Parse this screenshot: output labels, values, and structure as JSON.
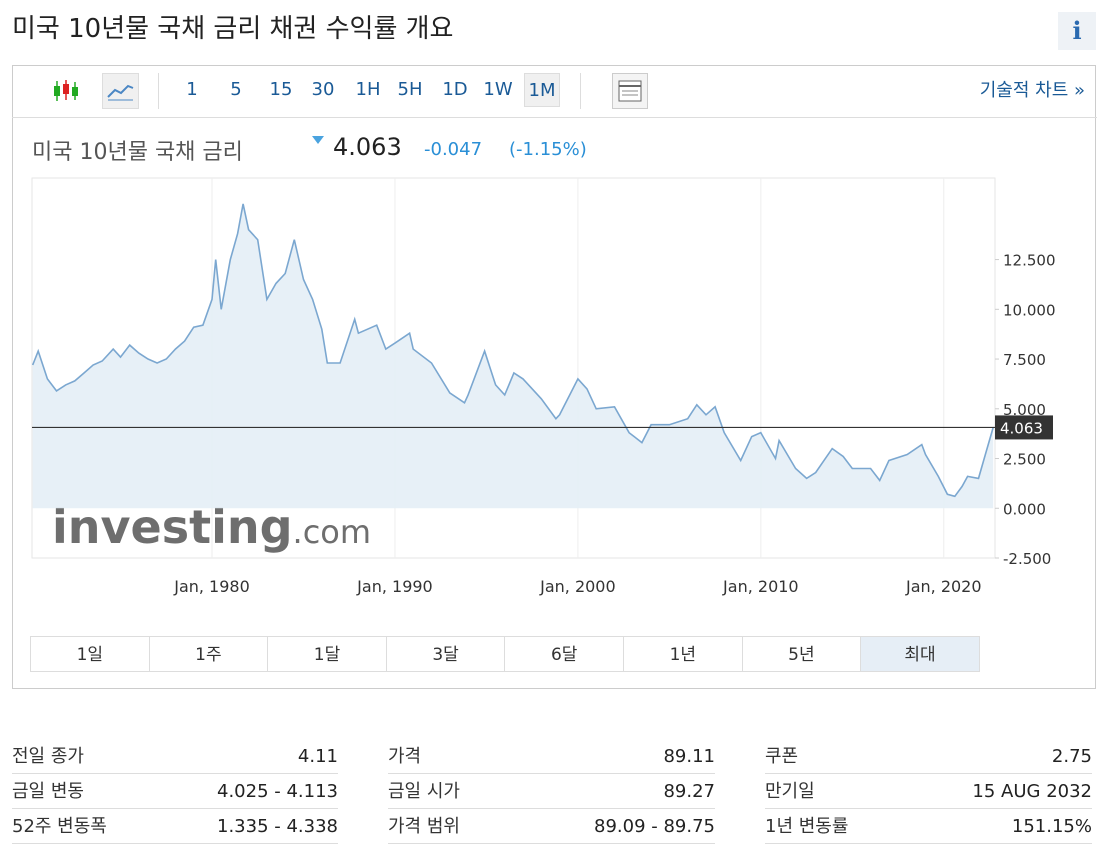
{
  "header": {
    "title": "미국 10년물 국채 금리  채권 수익률 개요",
    "info": "i"
  },
  "toolbar": {
    "intervals": [
      "1",
      "5",
      "15",
      "30",
      "1H",
      "5H",
      "1D",
      "1W",
      "1M"
    ],
    "selected_interval": "1M",
    "link": "기술적 차트 »"
  },
  "quote": {
    "name": "미국 10년물 국채 금리",
    "change": "-0.047",
    "change_percent": "(-1.15%)"
  },
  "chart_data": {
    "type": "line",
    "last_value": 4.063,
    "watermark": {
      "brand": "investing",
      "suffix": ".com"
    },
    "x": [
      1970.2,
      1970.5,
      1971.0,
      1971.5,
      1972.0,
      1972.5,
      1973.0,
      1973.5,
      1974.0,
      1974.6,
      1975.0,
      1975.5,
      1976.0,
      1976.5,
      1977.0,
      1977.5,
      1978.0,
      1978.5,
      1979.0,
      1979.5,
      1980.0,
      1980.2,
      1980.5,
      1981.0,
      1981.4,
      1981.7,
      1982.0,
      1982.5,
      1983.0,
      1983.5,
      1984.0,
      1984.5,
      1985.0,
      1985.5,
      1986.0,
      1986.3,
      1987.0,
      1987.8,
      1988.0,
      1989.0,
      1989.5,
      1990.0,
      1990.8,
      1991.0,
      1992.0,
      1993.0,
      1993.8,
      1994.0,
      1994.9,
      1995.5,
      1996.0,
      1996.5,
      1997.0,
      1998.0,
      1998.8,
      1999.0,
      2000.0,
      2000.5,
      2001.0,
      2002.0,
      2002.8,
      2003.5,
      2004.0,
      2005.0,
      2006.0,
      2006.5,
      2007.0,
      2007.5,
      2008.0,
      2008.9,
      2009.5,
      2010.0,
      2010.8,
      2011.0,
      2011.9,
      2012.5,
      2013.0,
      2013.9,
      2014.5,
      2015.0,
      2016.0,
      2016.5,
      2017.0,
      2018.0,
      2018.8,
      2019.0,
      2019.7,
      2020.2,
      2020.6,
      2021.0,
      2021.3,
      2021.9,
      2022.3,
      2022.7
    ],
    "values": [
      7.2,
      7.9,
      6.5,
      5.9,
      6.2,
      6.4,
      6.8,
      7.2,
      7.4,
      8.0,
      7.6,
      8.2,
      7.8,
      7.5,
      7.3,
      7.5,
      8.0,
      8.4,
      9.1,
      9.2,
      10.5,
      12.5,
      10.0,
      12.5,
      13.8,
      15.3,
      14.0,
      13.5,
      10.5,
      11.3,
      11.8,
      13.5,
      11.5,
      10.5,
      9.0,
      7.3,
      7.3,
      9.5,
      8.8,
      9.2,
      8.0,
      8.3,
      8.8,
      8.0,
      7.3,
      5.8,
      5.3,
      5.7,
      7.9,
      6.2,
      5.7,
      6.8,
      6.5,
      5.5,
      4.5,
      4.7,
      6.5,
      6.0,
      5.0,
      5.1,
      3.8,
      3.3,
      4.2,
      4.2,
      4.5,
      5.2,
      4.7,
      5.1,
      3.8,
      2.4,
      3.6,
      3.8,
      2.5,
      3.4,
      2.0,
      1.5,
      1.8,
      3.0,
      2.6,
      2.0,
      2.0,
      1.4,
      2.4,
      2.7,
      3.2,
      2.7,
      1.6,
      0.7,
      0.6,
      1.1,
      1.6,
      1.5,
      2.8,
      4.063
    ],
    "color": "#7ba7d0",
    "fill": "#e4eef6",
    "xlim": [
      1970.16,
      2022.8
    ],
    "xticks": [
      {
        "value": 1980,
        "label": "Jan, 1980"
      },
      {
        "value": 1990,
        "label": "Jan, 1990"
      },
      {
        "value": 2000,
        "label": "Jan, 2000"
      },
      {
        "value": 2010,
        "label": "Jan, 2010"
      },
      {
        "value": 2020,
        "label": "Jan, 2020"
      }
    ],
    "ylim": [
      -2.5,
      16.6
    ],
    "yticks": [
      {
        "value": -2.5,
        "label": "-2.500"
      },
      {
        "value": 0,
        "label": "0.000"
      },
      {
        "value": 2.5,
        "label": "2.500"
      },
      {
        "value": 5,
        "label": "5.000"
      },
      {
        "value": 7.5,
        "label": "7.500"
      },
      {
        "value": 10,
        "label": "10.000"
      },
      {
        "value": 12.5,
        "label": "12.500"
      }
    ]
  },
  "periods": [
    "1일",
    "1주",
    "1달",
    "3달",
    "6달",
    "1년",
    "5년",
    "최대"
  ],
  "selected_period": "최대",
  "stats": [
    [
      [
        "전일 종가",
        "4.11"
      ],
      [
        "금일 변동",
        "4.025 - 4.113"
      ],
      [
        "52주 변동폭",
        "1.335 - 4.338"
      ]
    ],
    [
      [
        "가격",
        "89.11"
      ],
      [
        "금일 시가",
        "89.27"
      ],
      [
        "가격 범위",
        "89.09 - 89.75"
      ]
    ],
    [
      [
        "쿠폰",
        "2.75"
      ],
      [
        "만기일",
        "15 AUG 2032"
      ],
      [
        "1년 변동률",
        "151.15%"
      ]
    ]
  ]
}
